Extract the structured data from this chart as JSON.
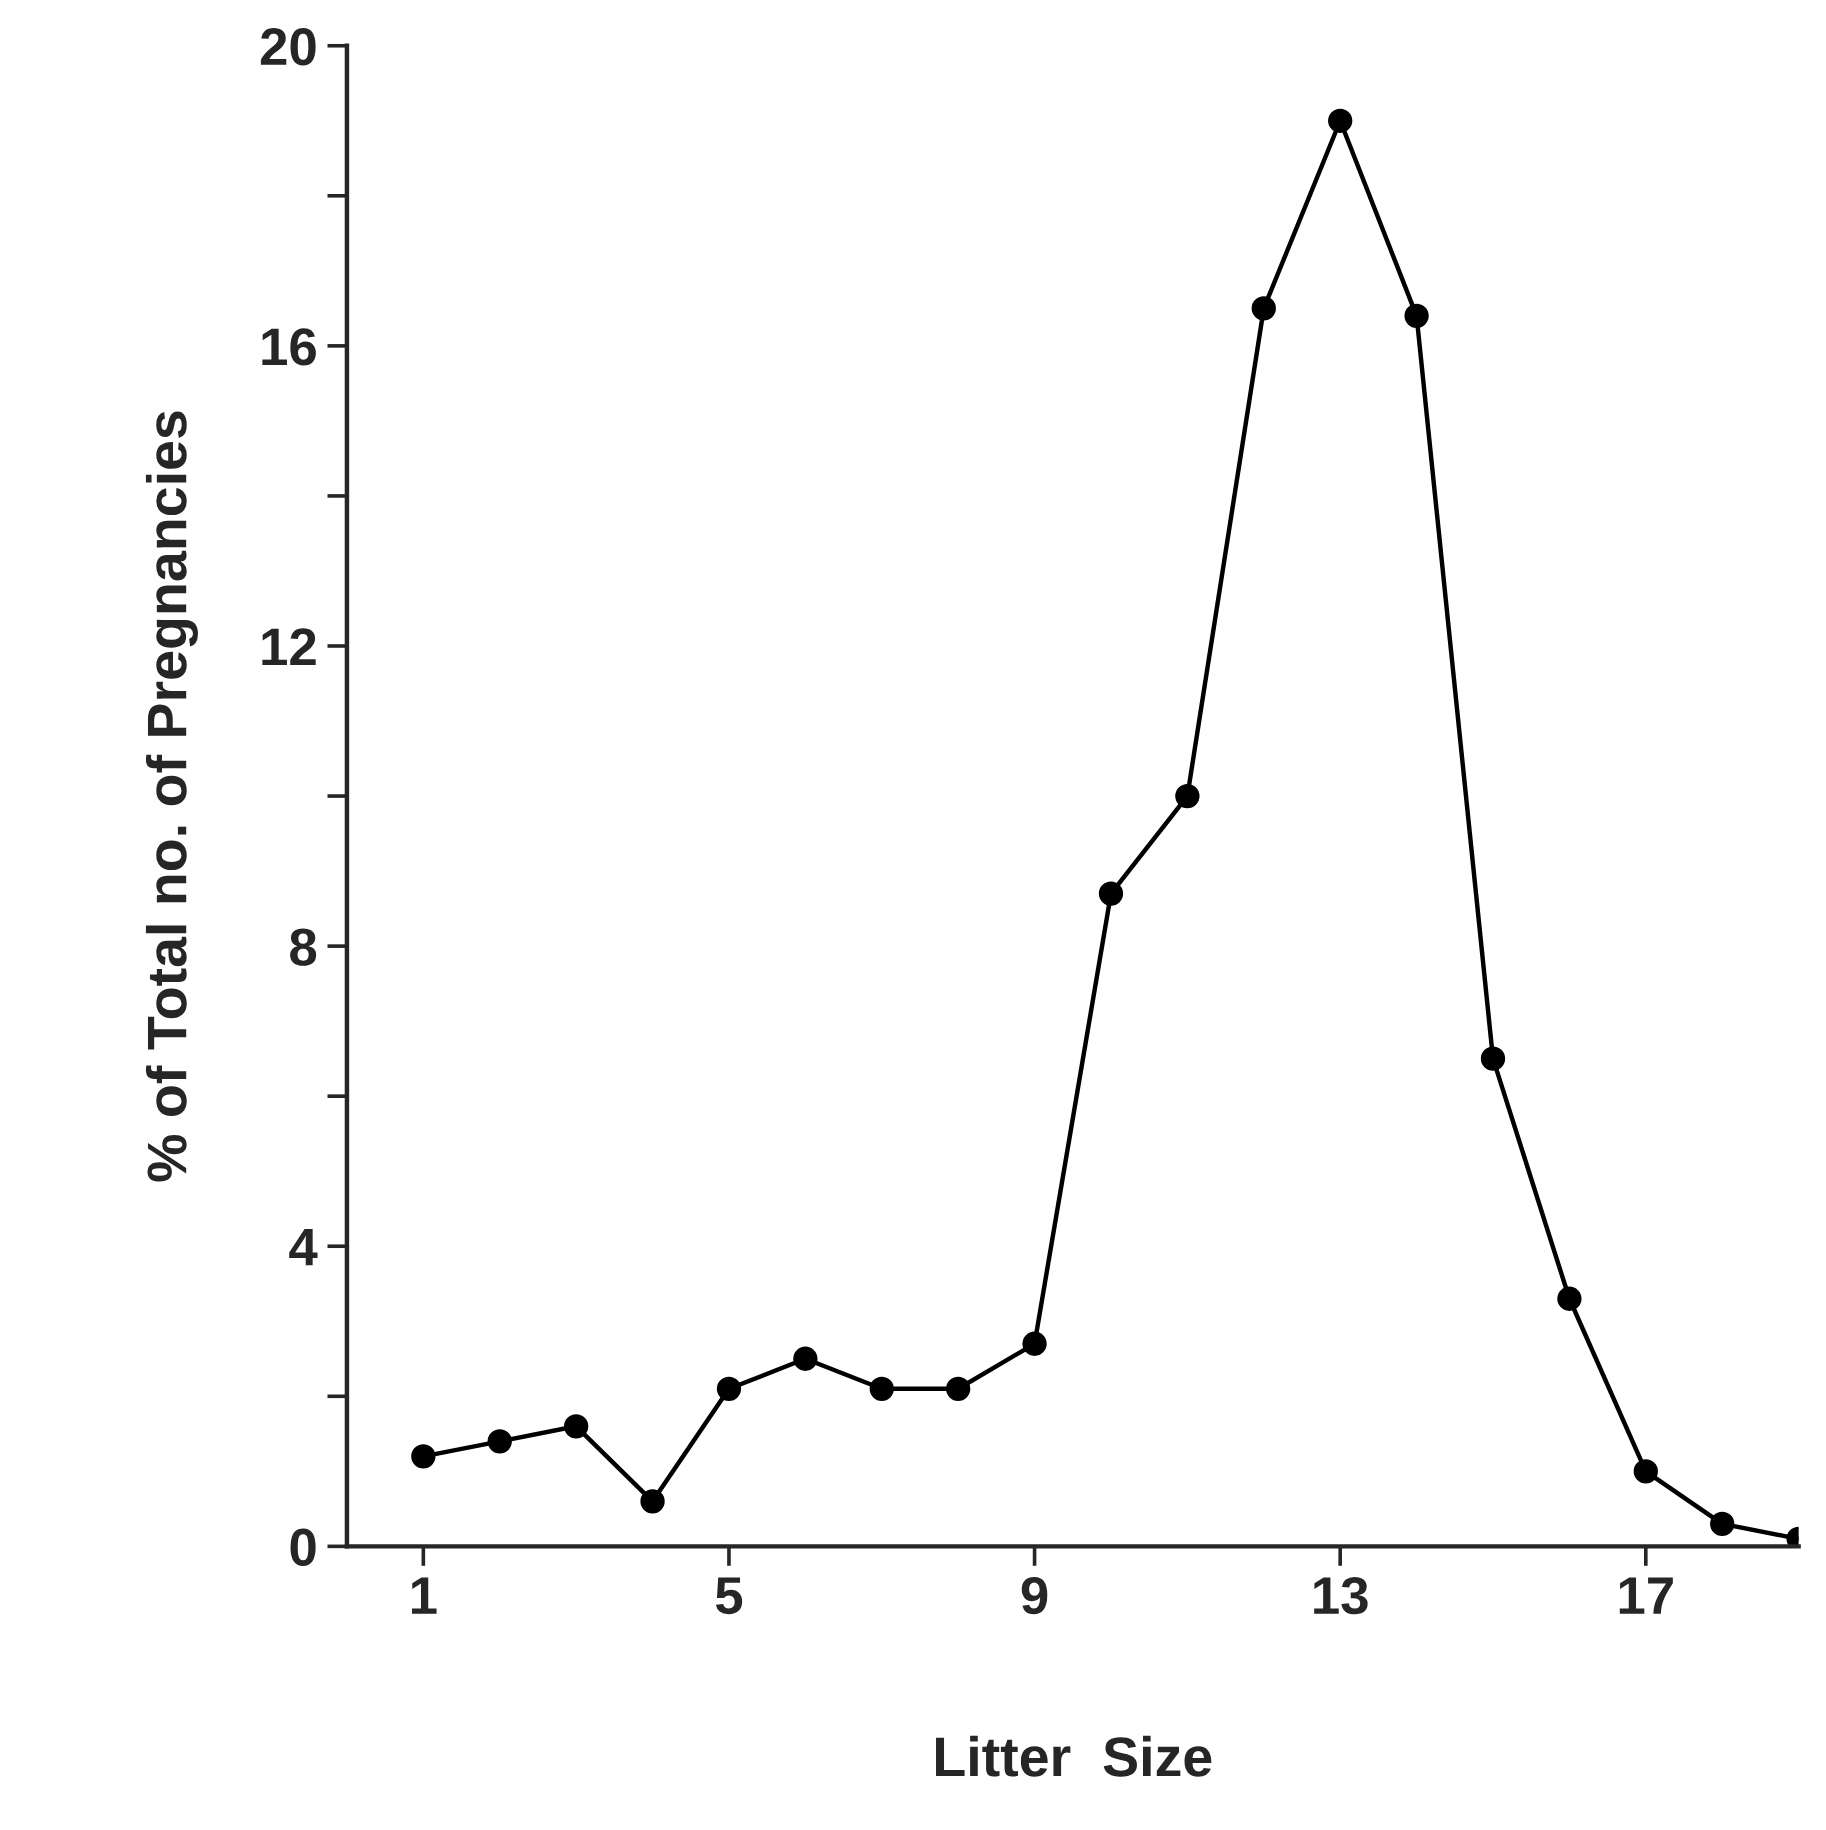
{
  "chart_data": {
    "type": "line",
    "xlabel": "Litter  Size",
    "ylabel": "% of Total no. of Pregnancies",
    "x": [
      1,
      2,
      3,
      4,
      5,
      6,
      7,
      8,
      9,
      10,
      11,
      12,
      13,
      14,
      15,
      16,
      17,
      18,
      19
    ],
    "series": [
      {
        "color": "#000000",
        "values": [
          1.2,
          1.4,
          1.6,
          0.6,
          2.1,
          2.5,
          2.1,
          2.1,
          2.7,
          8.7,
          10.0,
          16.5,
          19.0,
          16.4,
          6.5,
          3.3,
          1.0,
          0.3,
          0.1
        ]
      }
    ],
    "xlim": [
      0,
      19
    ],
    "ylim": [
      0,
      20
    ],
    "xticks": [
      1,
      5,
      9,
      13,
      17
    ],
    "yticks": [
      0,
      {
        "value": 2,
        "label": null
      },
      4,
      {
        "value": 6,
        "label": null
      },
      8,
      {
        "value": 10,
        "label": null
      },
      12,
      {
        "value": 14,
        "label": null
      },
      16,
      {
        "value": 18,
        "label": null
      },
      20
    ],
    "marker": "circle",
    "line_style": "solid",
    "grid": false,
    "legend": false
  }
}
